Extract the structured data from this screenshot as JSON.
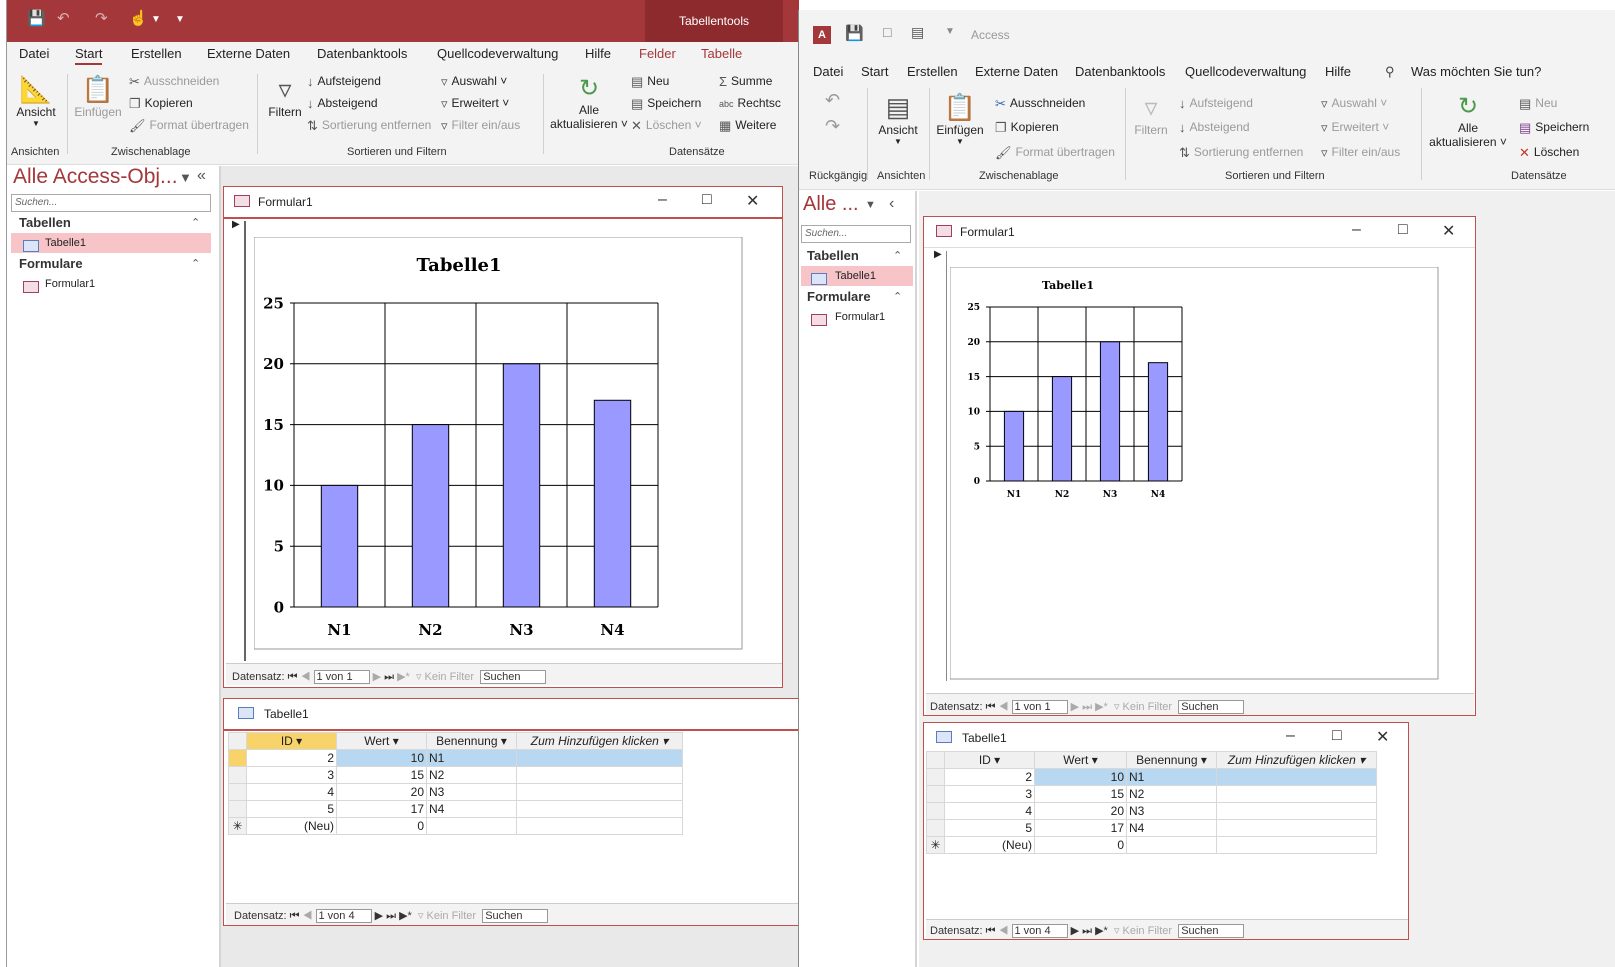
{
  "left_window": {
    "titlebar": {
      "contextual_tab": "Tabellentools"
    },
    "tabs": [
      "Datei",
      "Start",
      "Erstellen",
      "Externe Daten",
      "Datenbanktools",
      "Quellcodeverwaltung",
      "Hilfe",
      "Felder",
      "Tabelle"
    ],
    "ribbon": {
      "ansicht": "Ansicht",
      "einfuegen": "Einfügen",
      "ausschneiden": "Ausschneiden",
      "kopieren": "Kopieren",
      "format_uebertragen": "Format übertragen",
      "filtern": "Filtern",
      "aufsteigend": "Aufsteigend",
      "absteigend": "Absteigend",
      "sortierung_entfernen": "Sortierung entfernen",
      "auswahl": "Auswahl",
      "erweitert": "Erweitert",
      "filter_einaus": "Filter ein/aus",
      "alle_aktualisieren_1": "Alle",
      "alle_aktualisieren_2": "aktualisieren",
      "neu": "Neu",
      "speichern": "Speichern",
      "loeschen": "Löschen",
      "summe": "Summe",
      "rechtschreibung": "Rechtsc",
      "weitere": "Weitere",
      "groups": {
        "ansichten": "Ansichten",
        "zwischenablage": "Zwischenablage",
        "sortieren": "Sortieren und Filtern",
        "datensaetze": "Datensätze"
      }
    },
    "nav": {
      "title": "Alle Access-Obj...",
      "search_placeholder": "Suchen...",
      "section_tables": "Tabellen",
      "table_item": "Tabelle1",
      "section_forms": "Formulare",
      "form_item": "Formular1"
    },
    "form": {
      "title": "Formular1",
      "recbar": {
        "label": "Datensatz:",
        "position": "1 von 1",
        "filter": "Kein Filter",
        "search": "Suchen"
      }
    },
    "table": {
      "title": "Tabelle1",
      "headers": [
        "ID",
        "Wert",
        "Benennung",
        "Zum Hinzufügen klicken"
      ],
      "rows": [
        [
          "2",
          "10",
          "N1"
        ],
        [
          "3",
          "15",
          "N2"
        ],
        [
          "4",
          "20",
          "N3"
        ],
        [
          "5",
          "17",
          "N4"
        ]
      ],
      "new_row": [
        "(Neu)",
        "0",
        ""
      ],
      "recbar": {
        "label": "Datensatz:",
        "position": "1 von 4",
        "filter": "Kein Filter",
        "search": "Suchen"
      }
    }
  },
  "right_window": {
    "titlebar": {
      "app": "Access"
    },
    "tabs": [
      "Datei",
      "Start",
      "Erstellen",
      "Externe Daten",
      "Datenbanktools",
      "Quellcodeverwaltung",
      "Hilfe"
    ],
    "tell_me": "Was möchten Sie tun?",
    "ribbon": {
      "ansicht": "Ansicht",
      "einfuegen": "Einfügen",
      "ausschneiden": "Ausschneiden",
      "kopieren": "Kopieren",
      "format_uebertragen": "Format übertragen",
      "filtern": "Filtern",
      "aufsteigend": "Aufsteigend",
      "absteigend": "Absteigend",
      "sortierung_entfernen": "Sortierung entfernen",
      "auswahl": "Auswahl",
      "erweitert": "Erweitert",
      "filter_einaus": "Filter ein/aus",
      "alle_1": "Alle",
      "alle_2": "aktualisieren",
      "neu": "Neu",
      "speichern": "Speichern",
      "loeschen": "Löschen",
      "groups": {
        "rueckgaengig": "Rückgängig",
        "ansichten": "Ansichten",
        "zwischenablage": "Zwischenablage",
        "sortieren": "Sortieren und Filtern",
        "datensaetze": "Datensätze"
      }
    },
    "nav": {
      "title": "Alle ...",
      "search_placeholder": "Suchen...",
      "section_tables": "Tabellen",
      "table_item": "Tabelle1",
      "section_forms": "Formulare",
      "form_item": "Formular1"
    },
    "form": {
      "title": "Formular1",
      "recbar": {
        "label": "Datensatz:",
        "position": "1 von 1",
        "filter": "Kein Filter",
        "search": "Suchen"
      }
    },
    "table": {
      "title": "Tabelle1",
      "headers": [
        "ID",
        "Wert",
        "Benennung",
        "Zum Hinzufügen klicken"
      ],
      "rows": [
        [
          "2",
          "10",
          "N1"
        ],
        [
          "3",
          "15",
          "N2"
        ],
        [
          "4",
          "20",
          "N3"
        ],
        [
          "5",
          "17",
          "N4"
        ]
      ],
      "new_row": [
        "(Neu)",
        "0",
        ""
      ],
      "recbar": {
        "label": "Datensatz:",
        "position": "1 von 4",
        "filter": "Kein Filter",
        "search": "Suchen"
      }
    }
  },
  "chart_data": [
    {
      "type": "bar",
      "title": "Tabelle1",
      "categories": [
        "N1",
        "N2",
        "N3",
        "N4"
      ],
      "values": [
        10,
        15,
        20,
        17
      ],
      "ylim": [
        0,
        25
      ],
      "yticks": [
        0,
        5,
        10,
        15,
        20,
        25
      ],
      "grid": true,
      "color": "#9999ff"
    },
    {
      "type": "bar",
      "title": "Tabelle1",
      "categories": [
        "N1",
        "N2",
        "N3",
        "N4"
      ],
      "values": [
        10,
        15,
        20,
        17
      ],
      "ylim": [
        0,
        25
      ],
      "yticks": [
        0,
        5,
        10,
        15,
        20,
        25
      ],
      "grid": true,
      "color": "#9999ff"
    }
  ]
}
